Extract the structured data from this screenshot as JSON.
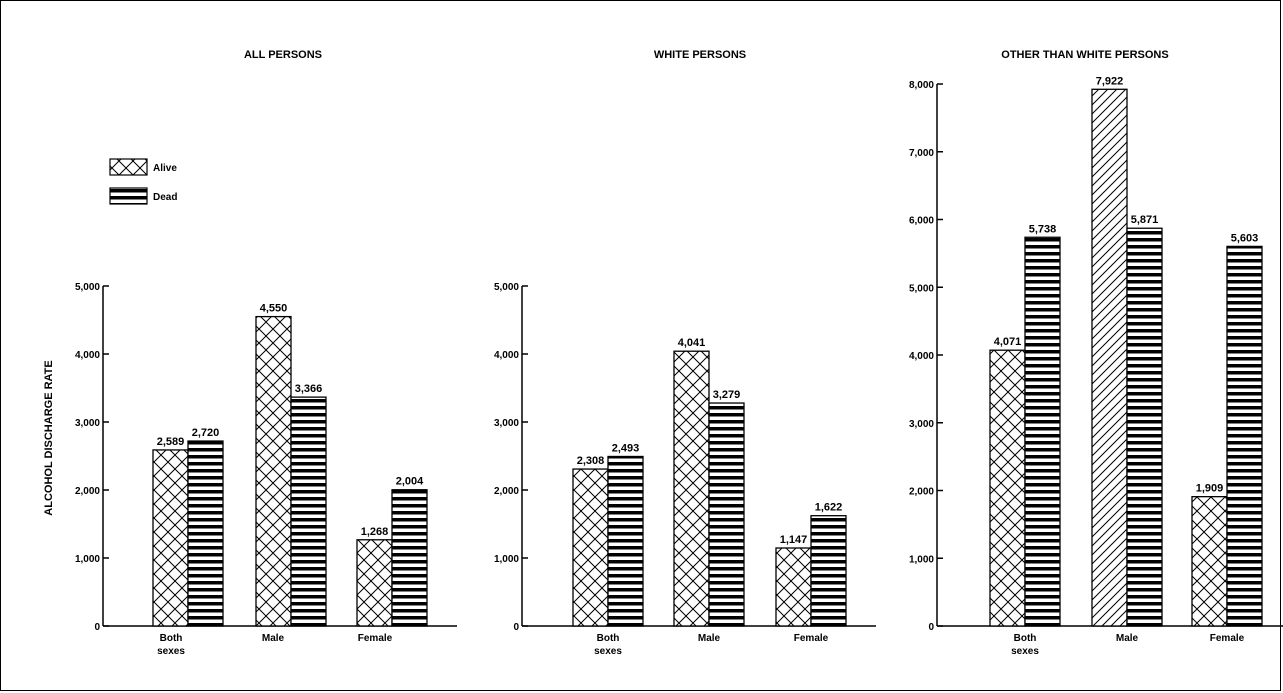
{
  "legend": {
    "alive": "Alive",
    "dead": "Dead"
  },
  "ylabel": "ALCOHOL DISCHARGE RATE",
  "chart_data": [
    {
      "type": "bar",
      "title": "ALL PERSONS",
      "categories": [
        "Both sexes",
        "Male",
        "Female"
      ],
      "series": [
        {
          "name": "Alive",
          "values": [
            2589,
            4550,
            1268
          ],
          "labels": [
            "2,589",
            "4,550",
            "1,268"
          ]
        },
        {
          "name": "Dead",
          "values": [
            2720,
            3366,
            2004
          ],
          "labels": [
            "2,720",
            "3,366",
            "2,004"
          ]
        }
      ],
      "ylabel": "ALCOHOL DISCHARGE RATE",
      "ylim": [
        0,
        5000
      ],
      "yticks": [
        0,
        1000,
        2000,
        3000,
        4000,
        5000
      ],
      "ytick_labels": [
        "0",
        "1,000",
        "2,000",
        "3,000",
        "4,000",
        "5,000"
      ],
      "legend_position": "top-left"
    },
    {
      "type": "bar",
      "title": "WHITE PERSONS",
      "categories": [
        "Both sexes",
        "Male",
        "Female"
      ],
      "series": [
        {
          "name": "Alive",
          "values": [
            2308,
            4041,
            1147
          ],
          "labels": [
            "2,308",
            "4,041",
            "1,147"
          ]
        },
        {
          "name": "Dead",
          "values": [
            2493,
            3279,
            1622
          ],
          "labels": [
            "2,493",
            "3,279",
            "1,622"
          ]
        }
      ],
      "ylim": [
        0,
        5000
      ],
      "yticks": [
        0,
        1000,
        2000,
        3000,
        4000,
        5000
      ],
      "ytick_labels": [
        "0",
        "1,000",
        "2,000",
        "3,000",
        "4,000",
        "5,000"
      ]
    },
    {
      "type": "bar",
      "title": "OTHER THAN WHITE PERSONS",
      "categories": [
        "Both sexes",
        "Male",
        "Female"
      ],
      "series": [
        {
          "name": "Alive",
          "values": [
            4071,
            7922,
            1909
          ],
          "labels": [
            "4,071",
            "7,922",
            "1,909"
          ]
        },
        {
          "name": "Dead",
          "values": [
            5738,
            5871,
            5603
          ],
          "labels": [
            "5,738",
            "5,871",
            "5,603"
          ]
        }
      ],
      "ylim": [
        0,
        8000
      ],
      "yticks": [
        0,
        1000,
        2000,
        3000,
        4000,
        5000,
        6000,
        7000,
        8000
      ],
      "ytick_labels": [
        "0",
        "1,000",
        "2,000",
        "3,000",
        "4,000",
        "5,000",
        "6,000",
        "7,000",
        "8,000"
      ]
    }
  ]
}
